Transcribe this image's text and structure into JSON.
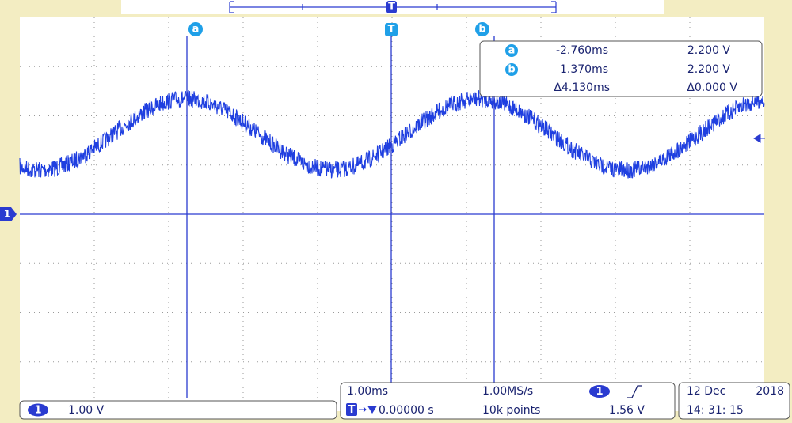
{
  "trigger_marker": "T",
  "channel_marker": "1",
  "cursors": {
    "a": {
      "marker": "a",
      "time": "-2.760ms",
      "voltage": "2.200 V"
    },
    "b": {
      "marker": "b",
      "time": "1.370ms",
      "voltage": "2.200 V"
    },
    "delta": {
      "time": "Δ4.130ms",
      "voltage": "Δ0.000 V"
    }
  },
  "status": {
    "channel": "1",
    "scale": "1.00 V",
    "timebase": "1.00ms",
    "sample_rate": "1.00MS/s",
    "trigger_icon": "T",
    "trigger_position": "0.00000 s",
    "record_length": "10k points",
    "trigger_channel": "1",
    "trigger_level": "1.56 V",
    "date": "12 Dec",
    "year": "2018",
    "time": "14: 31: 15"
  }
}
